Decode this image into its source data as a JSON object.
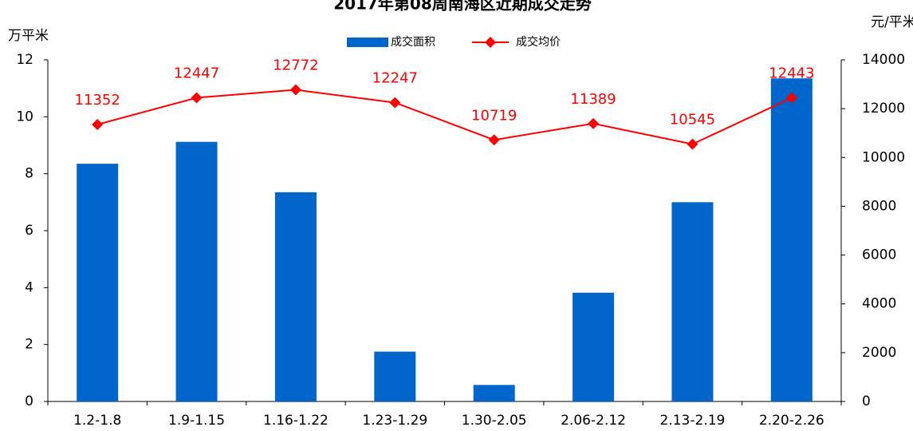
{
  "chart_data": {
    "type": "bar_line",
    "title": "2017年第08周南海区近期成交走势",
    "y_label": "万平米",
    "y2_label": "元/平米",
    "categories": [
      "1.2-1.8",
      "1.9-1.15",
      "1.16-1.22",
      "1.23-1.29",
      "1.30-2.05",
      "2.06-2.12",
      "2.13-2.19",
      "2.20-2.26"
    ],
    "series": [
      {
        "name": "成交面积",
        "type": "bar",
        "color": "#0066cc",
        "values": [
          8.35,
          9.12,
          7.35,
          1.75,
          0.58,
          3.82,
          7.0,
          11.35
        ]
      },
      {
        "name": "成交均价",
        "type": "line",
        "color": "#ff0000",
        "axis": "y2",
        "values": [
          11352,
          12447,
          12772,
          12247,
          10719,
          11389,
          10545,
          12443
        ]
      }
    ],
    "ylim": [
      0,
      12
    ],
    "yticks": [
      0,
      2,
      4,
      6,
      8,
      10,
      12
    ],
    "y2lim": [
      0,
      14000
    ],
    "y2ticks": [
      0,
      2000,
      4000,
      6000,
      8000,
      10000,
      12000,
      14000
    ],
    "grid": false
  }
}
